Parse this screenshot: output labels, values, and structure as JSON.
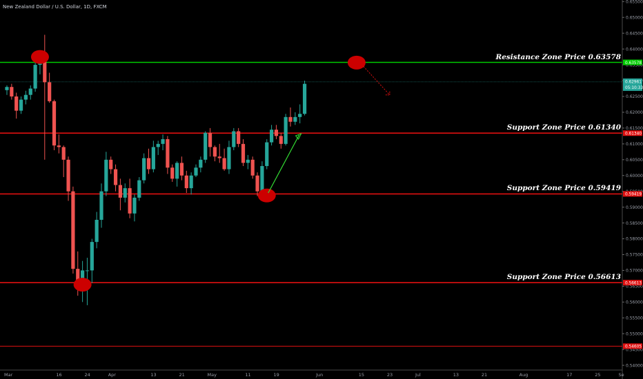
{
  "title": "New Zealand Dollar / U.S. Dollar, 1D, FXCM",
  "chart_data": {
    "type": "candlestick",
    "y_ticks": [
      "0.65500",
      "0.65000",
      "0.64500",
      "0.64000",
      "0.63500",
      "0.63000",
      "0.62500",
      "0.62000",
      "0.61500",
      "0.61000",
      "0.60500",
      "0.60000",
      "0.59500",
      "0.59000",
      "0.58500",
      "0.58000",
      "0.57500",
      "0.57000",
      "0.56500",
      "0.56000",
      "0.55500",
      "0.55000",
      "0.54500",
      "0.54000"
    ],
    "ylim": [
      0.5385,
      0.6555
    ],
    "x_ticks": [
      {
        "label": "Mar",
        "bar": 0
      },
      {
        "label": "16",
        "bar": 11
      },
      {
        "label": "24",
        "bar": 17
      },
      {
        "label": "Apr",
        "bar": 22
      },
      {
        "label": "13",
        "bar": 31
      },
      {
        "label": "21",
        "bar": 37
      },
      {
        "label": "May",
        "bar": 43
      },
      {
        "label": "11",
        "bar": 51
      },
      {
        "label": "19",
        "bar": 57
      },
      {
        "label": "Jun",
        "bar": 66
      },
      {
        "label": "15",
        "bar": 75
      },
      {
        "label": "23",
        "bar": 81
      },
      {
        "label": "Jul",
        "bar": 87
      },
      {
        "label": "13",
        "bar": 95
      },
      {
        "label": "21",
        "bar": 101
      },
      {
        "label": "Aug",
        "bar": 109
      },
      {
        "label": "17",
        "bar": 119
      },
      {
        "label": "25",
        "bar": 125
      },
      {
        "label": "Se",
        "bar": 130
      }
    ],
    "ohlc": [
      [
        0.627,
        0.6285,
        0.6255,
        0.628
      ],
      [
        0.628,
        0.629,
        0.624,
        0.625
      ],
      [
        0.625,
        0.6262,
        0.618,
        0.6205
      ],
      [
        0.6205,
        0.625,
        0.6195,
        0.624
      ],
      [
        0.624,
        0.6268,
        0.6225,
        0.6255
      ],
      [
        0.6255,
        0.6285,
        0.624,
        0.6275
      ],
      [
        0.6275,
        0.6365,
        0.6265,
        0.635
      ],
      [
        0.635,
        0.6395,
        0.632,
        0.636
      ],
      [
        0.636,
        0.6445,
        0.605,
        0.6295
      ],
      [
        0.6295,
        0.6325,
        0.623,
        0.6235
      ],
      [
        0.6235,
        0.624,
        0.608,
        0.6095
      ],
      [
        0.6095,
        0.613,
        0.607,
        0.609
      ],
      [
        0.609,
        0.6095,
        0.5995,
        0.605
      ],
      [
        0.605,
        0.606,
        0.592,
        0.595
      ],
      [
        0.595,
        0.5965,
        0.569,
        0.5705
      ],
      [
        0.5705,
        0.576,
        0.562,
        0.5645
      ],
      [
        0.5645,
        0.573,
        0.56,
        0.57
      ],
      [
        0.57,
        0.574,
        0.559,
        0.57
      ],
      [
        0.57,
        0.58,
        0.566,
        0.579
      ],
      [
        0.579,
        0.5885,
        0.577,
        0.586
      ],
      [
        0.586,
        0.5975,
        0.5835,
        0.595
      ],
      [
        0.595,
        0.6075,
        0.5935,
        0.605
      ],
      [
        0.605,
        0.606,
        0.6005,
        0.602
      ],
      [
        0.602,
        0.6035,
        0.595,
        0.597
      ],
      [
        0.597,
        0.599,
        0.589,
        0.593
      ],
      [
        0.593,
        0.5975,
        0.5915,
        0.596
      ],
      [
        0.596,
        0.599,
        0.5865,
        0.588
      ],
      [
        0.588,
        0.594,
        0.5855,
        0.593
      ],
      [
        0.593,
        0.5995,
        0.592,
        0.5985
      ],
      [
        0.5985,
        0.607,
        0.5975,
        0.6055
      ],
      [
        0.6055,
        0.6085,
        0.6005,
        0.602
      ],
      [
        0.602,
        0.611,
        0.601,
        0.609
      ],
      [
        0.609,
        0.611,
        0.6065,
        0.61
      ],
      [
        0.61,
        0.613,
        0.608,
        0.6115
      ],
      [
        0.6115,
        0.6125,
        0.6005,
        0.6025
      ],
      [
        0.6025,
        0.6035,
        0.598,
        0.599
      ],
      [
        0.599,
        0.6045,
        0.5965,
        0.604
      ],
      [
        0.604,
        0.606,
        0.5985,
        0.6
      ],
      [
        0.6,
        0.6015,
        0.5945,
        0.596
      ],
      [
        0.596,
        0.601,
        0.594,
        0.6
      ],
      [
        0.6,
        0.6035,
        0.5995,
        0.6025
      ],
      [
        0.6025,
        0.606,
        0.601,
        0.605
      ],
      [
        0.605,
        0.614,
        0.604,
        0.6135
      ],
      [
        0.6135,
        0.615,
        0.606,
        0.609
      ],
      [
        0.609,
        0.6095,
        0.6045,
        0.606
      ],
      [
        0.606,
        0.61,
        0.604,
        0.6055
      ],
      [
        0.6055,
        0.6085,
        0.6015,
        0.602
      ],
      [
        0.602,
        0.611,
        0.6005,
        0.609
      ],
      [
        0.609,
        0.615,
        0.608,
        0.614
      ],
      [
        0.614,
        0.615,
        0.609,
        0.61
      ],
      [
        0.61,
        0.6115,
        0.603,
        0.604
      ],
      [
        0.604,
        0.6065,
        0.602,
        0.605
      ],
      [
        0.605,
        0.606,
        0.599,
        0.6
      ],
      [
        0.6,
        0.601,
        0.5935,
        0.595
      ],
      [
        0.595,
        0.6045,
        0.594,
        0.603
      ],
      [
        0.603,
        0.6115,
        0.602,
        0.6105
      ],
      [
        0.6105,
        0.616,
        0.6095,
        0.6145
      ],
      [
        0.6145,
        0.616,
        0.6115,
        0.6125
      ],
      [
        0.6125,
        0.6135,
        0.6085,
        0.61
      ],
      [
        0.61,
        0.6195,
        0.6095,
        0.6185
      ],
      [
        0.6185,
        0.6215,
        0.6155,
        0.617
      ],
      [
        0.617,
        0.62,
        0.616,
        0.6185
      ],
      [
        0.6185,
        0.6225,
        0.6165,
        0.6195
      ],
      [
        0.6195,
        0.63,
        0.619,
        0.629
      ]
    ],
    "zones": [
      {
        "label": "Resistance Zone Price 0.63578",
        "value": 0.63578,
        "color": "#00cc00",
        "tag": "0.63578"
      },
      {
        "label": "Support Zone Price 0.61340",
        "value": 0.6134,
        "color": "#e01010",
        "tag": "0.61340"
      },
      {
        "label": "Support Zone Price 0.59419",
        "value": 0.59419,
        "color": "#e01010",
        "tag": "0.59419"
      },
      {
        "label": "Support Zone Price 0.56613",
        "value": 0.56613,
        "color": "#e01010",
        "tag": "0.56613"
      }
    ],
    "low_line": {
      "value": 0.54605,
      "tag": "0.54605",
      "color": "#e01010"
    },
    "current_price": {
      "value": 0.6296,
      "tag": "0.62961",
      "countdown": "05:10:33",
      "color": "#26a69a"
    },
    "markers": [
      {
        "bar": 7,
        "price": 0.6375
      },
      {
        "bar": 16,
        "price": 0.5655
      },
      {
        "bar": 55,
        "price": 0.5937
      },
      {
        "bar": 74,
        "price": 0.6357
      }
    ],
    "colors": {
      "up": "#26a69a",
      "down": "#ef5350",
      "marker": "#cc0000",
      "arrow": "#33dd33",
      "forecast": "#e01010"
    }
  }
}
